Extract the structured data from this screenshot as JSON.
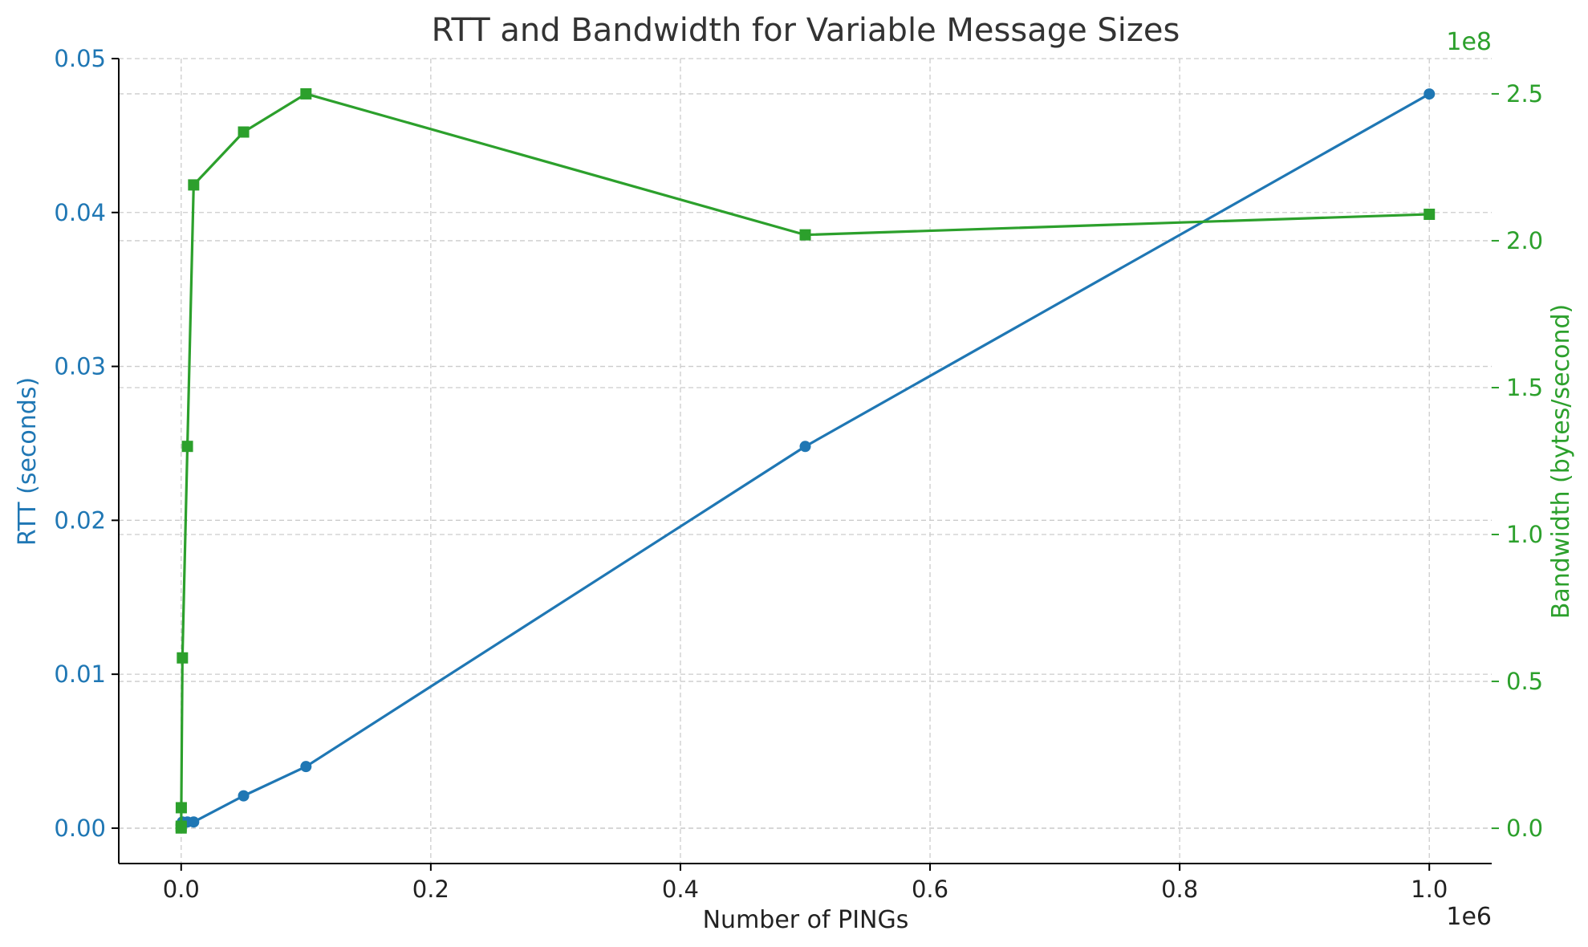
{
  "chart_data": {
    "type": "line",
    "title": "RTT and Bandwidth for Variable Message Sizes",
    "xlabel": "Number of PINGs",
    "x_multiplier_label": "1e6",
    "xlim": [
      -50000,
      1050000
    ],
    "x_ticks": [
      0,
      200000,
      400000,
      600000,
      800000,
      1000000
    ],
    "x_tick_labels": [
      "0.0",
      "0.2",
      "0.4",
      "0.6",
      "0.8",
      "1.0"
    ],
    "x": [
      1,
      10,
      100,
      1000,
      5000,
      10000,
      50000,
      100000,
      500000,
      1000000
    ],
    "left_axis": {
      "label": "RTT (seconds)",
      "color": "#1f77b4",
      "ylim": [
        -0.0023,
        0.05
      ],
      "ticks": [
        0,
        0.01,
        0.02,
        0.03,
        0.04,
        0.05
      ],
      "tick_labels": [
        "0.00",
        "0.01",
        "0.02",
        "0.03",
        "0.04",
        "0.05"
      ]
    },
    "right_axis": {
      "label": "Bandwidth (bytes/second)",
      "color": "#2ca02c",
      "multiplier_label": "1e8",
      "ylim": [
        -12000000,
        262000000
      ],
      "ticks": [
        0,
        50000000,
        100000000,
        150000000,
        200000000,
        250000000
      ],
      "tick_labels": [
        "0.0",
        "0.5",
        "1.0",
        "1.5",
        "2.0",
        "2.5"
      ]
    },
    "series": [
      {
        "name": "RTT (seconds)",
        "axis": "left",
        "color": "#1f77b4",
        "marker": "circle",
        "values": [
          0.0002,
          0.0002,
          0.0002,
          0.0004,
          0.0004,
          0.0004,
          0.0021,
          0.004,
          0.0248,
          0.0477
        ]
      },
      {
        "name": "Bandwidth (bytes/second)",
        "axis": "right",
        "color": "#2ca02c",
        "marker": "square",
        "values": [
          100000,
          700000,
          7000000,
          58000000,
          130000000,
          219000000,
          237000000,
          250000000,
          202000000,
          209000000
        ]
      }
    ],
    "grid": true
  }
}
